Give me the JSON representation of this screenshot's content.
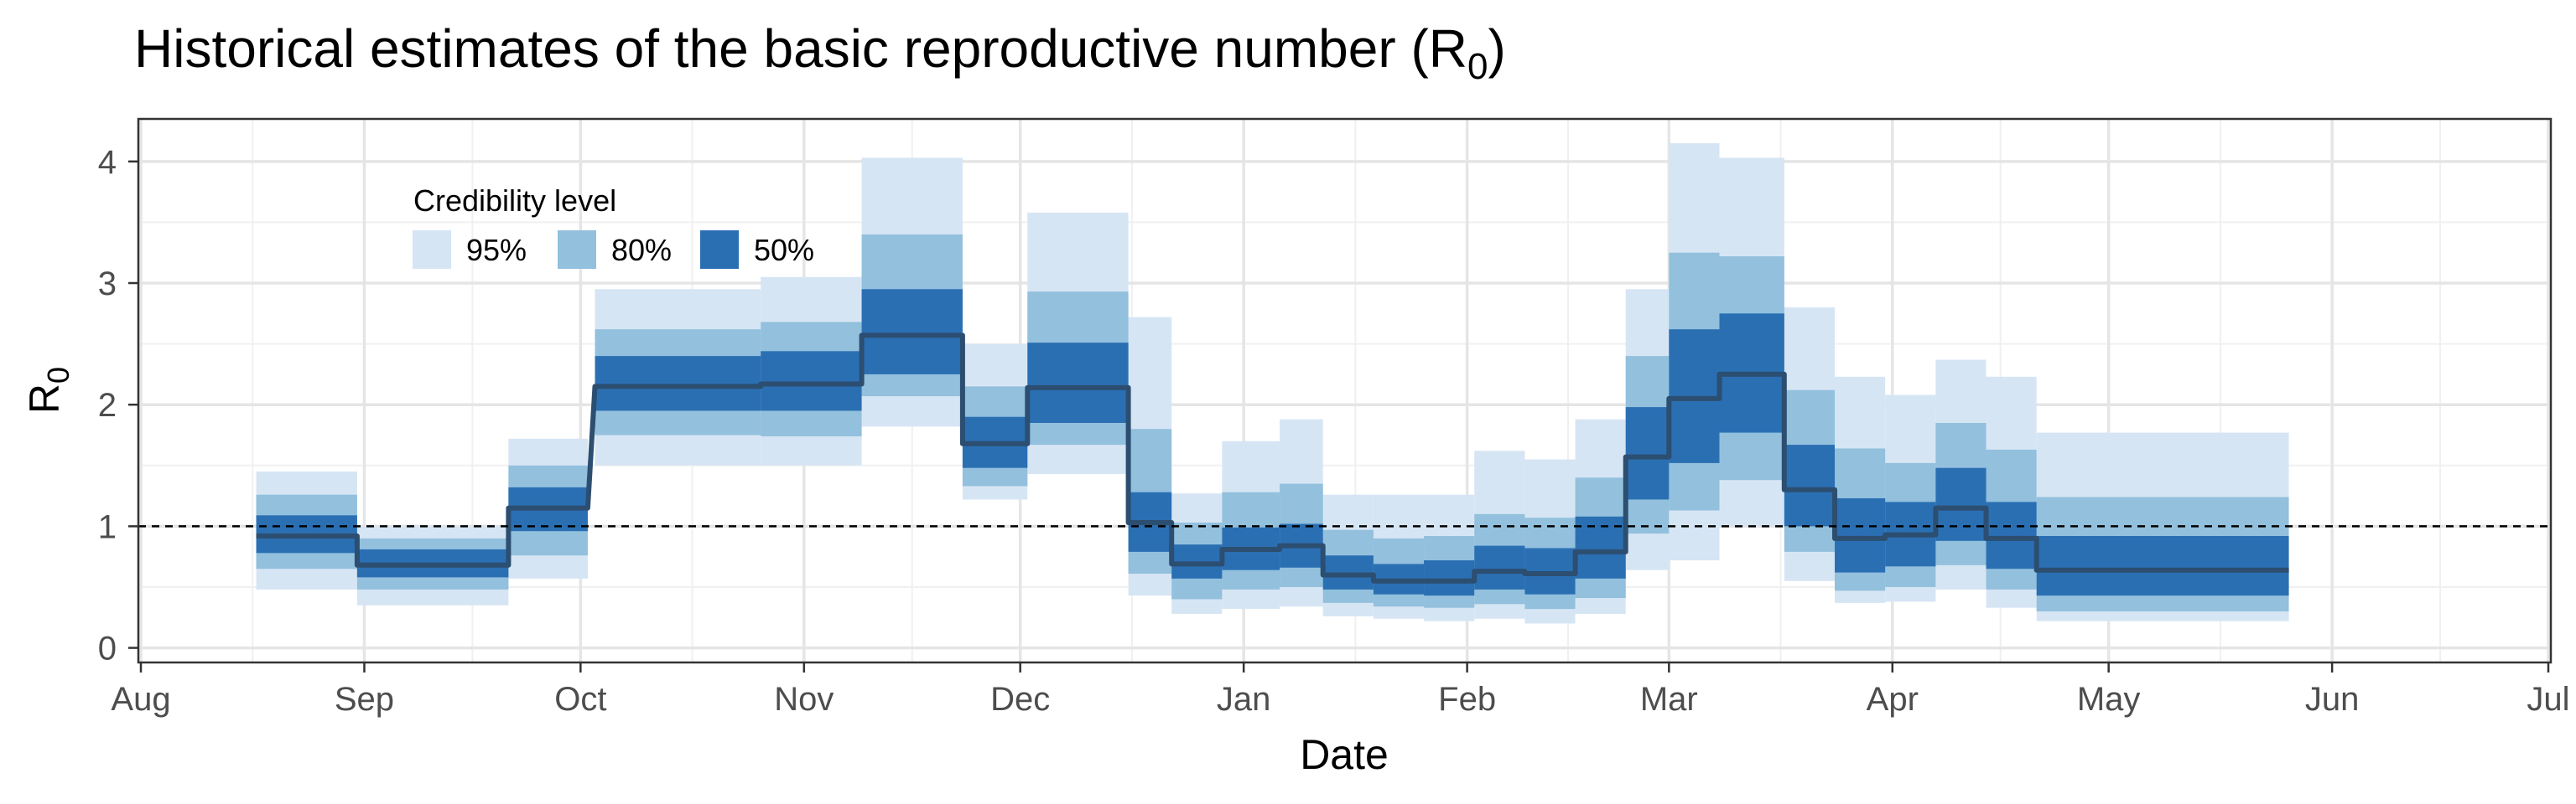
{
  "chart_data": {
    "type": "area",
    "title": "Historical estimates of the basic reproductive number (R",
    "title_sub": "0",
    "title_end": ")",
    "xlabel": "Date",
    "ylabel": "R",
    "ylabel_sub": "0",
    "x_ticks": [
      {
        "label": "Aug",
        "date": "2020-08-01"
      },
      {
        "label": "Sep",
        "date": "2020-09-01"
      },
      {
        "label": "Oct",
        "date": "2020-10-01"
      },
      {
        "label": "Nov",
        "date": "2020-11-01"
      },
      {
        "label": "Dec",
        "date": "2020-12-01"
      },
      {
        "label": "Jan",
        "date": "2021-01-01"
      },
      {
        "label": "Feb",
        "date": "2021-02-01"
      },
      {
        "label": "Mar",
        "date": "2021-03-01"
      },
      {
        "label": "Apr",
        "date": "2021-04-01"
      },
      {
        "label": "May",
        "date": "2021-05-01"
      },
      {
        "label": "Jun",
        "date": "2021-06-01"
      },
      {
        "label": "Jul",
        "date": "2021-07-01"
      }
    ],
    "xlim": [
      "2020-08-01",
      "2021-07-01"
    ],
    "y_ticks": [
      0,
      1,
      2,
      3,
      4
    ],
    "ylim": [
      -0.12,
      4.35
    ],
    "grid": true,
    "reference_line": 1,
    "legend": {
      "title": "Credibility level",
      "position": "top-left",
      "items": [
        {
          "label": "95%",
          "color": "#d6e5f4"
        },
        {
          "label": "80%",
          "color": "#92c0dd"
        },
        {
          "label": "50%",
          "color": "#2b6fb3"
        }
      ]
    },
    "colors": {
      "median": "#2c4e70",
      "reference": "#000000"
    },
    "segments": [
      {
        "start": "2020-08-17",
        "end": "2020-08-30",
        "median": 0.92,
        "lo95": 0.48,
        "hi95": 1.45,
        "lo80": 0.65,
        "hi80": 1.26,
        "lo50": 0.78,
        "hi50": 1.09
      },
      {
        "start": "2020-08-31",
        "end": "2020-09-20",
        "median": 0.68,
        "lo95": 0.35,
        "hi95": 1.0,
        "lo80": 0.48,
        "hi80": 0.9,
        "lo50": 0.58,
        "hi50": 0.81
      },
      {
        "start": "2020-09-21",
        "end": "2020-10-01",
        "median": 1.15,
        "lo95": 0.57,
        "hi95": 1.72,
        "lo80": 0.76,
        "hi80": 1.5,
        "lo50": 0.96,
        "hi50": 1.32
      },
      {
        "start": "2020-10-03",
        "end": "2020-10-25",
        "median": 2.15,
        "lo95": 1.5,
        "hi95": 2.95,
        "lo80": 1.75,
        "hi80": 2.62,
        "lo50": 1.95,
        "hi50": 2.4
      },
      {
        "start": "2020-10-26",
        "end": "2020-11-08",
        "median": 2.17,
        "lo95": 1.5,
        "hi95": 3.05,
        "lo80": 1.74,
        "hi80": 2.68,
        "lo50": 1.95,
        "hi50": 2.44
      },
      {
        "start": "2020-11-09",
        "end": "2020-11-22",
        "median": 2.57,
        "lo95": 1.82,
        "hi95": 4.03,
        "lo80": 2.07,
        "hi80": 3.4,
        "lo50": 2.25,
        "hi50": 2.95
      },
      {
        "start": "2020-11-23",
        "end": "2020-12-01",
        "median": 1.68,
        "lo95": 1.22,
        "hi95": 2.5,
        "lo80": 1.33,
        "hi80": 2.15,
        "lo50": 1.48,
        "hi50": 1.9
      },
      {
        "start": "2020-12-02",
        "end": "2020-12-15",
        "median": 2.14,
        "lo95": 1.43,
        "hi95": 3.58,
        "lo80": 1.67,
        "hi80": 2.93,
        "lo50": 1.85,
        "hi50": 2.51
      },
      {
        "start": "2020-12-16",
        "end": "2020-12-21",
        "median": 1.03,
        "lo95": 0.43,
        "hi95": 2.72,
        "lo80": 0.61,
        "hi80": 1.8,
        "lo50": 0.79,
        "hi50": 1.28
      },
      {
        "start": "2020-12-22",
        "end": "2020-12-28",
        "median": 0.69,
        "lo95": 0.28,
        "hi95": 1.27,
        "lo80": 0.4,
        "hi80": 1.03,
        "lo50": 0.57,
        "hi50": 0.85
      },
      {
        "start": "2020-12-29",
        "end": "2021-01-05",
        "median": 0.81,
        "lo95": 0.32,
        "hi95": 1.7,
        "lo80": 0.48,
        "hi80": 1.28,
        "lo50": 0.64,
        "hi50": 0.99
      },
      {
        "start": "2021-01-06",
        "end": "2021-01-11",
        "median": 0.84,
        "lo95": 0.34,
        "hi95": 1.88,
        "lo80": 0.5,
        "hi80": 1.35,
        "lo50": 0.66,
        "hi50": 1.02
      },
      {
        "start": "2021-01-12",
        "end": "2021-01-18",
        "median": 0.6,
        "lo95": 0.26,
        "hi95": 1.26,
        "lo80": 0.37,
        "hi80": 0.97,
        "lo50": 0.48,
        "hi50": 0.76
      },
      {
        "start": "2021-01-19",
        "end": "2021-01-25",
        "median": 0.55,
        "lo95": 0.24,
        "hi95": 1.26,
        "lo80": 0.34,
        "hi80": 0.9,
        "lo50": 0.44,
        "hi50": 0.69
      },
      {
        "start": "2021-01-26",
        "end": "2021-02-01",
        "median": 0.55,
        "lo95": 0.22,
        "hi95": 1.26,
        "lo80": 0.33,
        "hi80": 0.92,
        "lo50": 0.43,
        "hi50": 0.72
      },
      {
        "start": "2021-02-02",
        "end": "2021-02-08",
        "median": 0.63,
        "lo95": 0.24,
        "hi95": 1.62,
        "lo80": 0.36,
        "hi80": 1.1,
        "lo50": 0.48,
        "hi50": 0.84
      },
      {
        "start": "2021-02-09",
        "end": "2021-02-15",
        "median": 0.61,
        "lo95": 0.2,
        "hi95": 1.55,
        "lo80": 0.32,
        "hi80": 1.07,
        "lo50": 0.44,
        "hi50": 0.82
      },
      {
        "start": "2021-02-16",
        "end": "2021-02-22",
        "median": 0.79,
        "lo95": 0.28,
        "hi95": 1.88,
        "lo80": 0.41,
        "hi80": 1.4,
        "lo50": 0.57,
        "hi50": 1.08
      },
      {
        "start": "2021-02-23",
        "end": "2021-02-28",
        "median": 1.57,
        "lo95": 0.64,
        "hi95": 2.95,
        "lo80": 0.94,
        "hi80": 2.4,
        "lo50": 1.22,
        "hi50": 1.98
      },
      {
        "start": "2021-03-01",
        "end": "2021-03-07",
        "median": 2.05,
        "lo95": 0.72,
        "hi95": 4.15,
        "lo80": 1.13,
        "hi80": 3.25,
        "lo50": 1.52,
        "hi50": 2.62
      },
      {
        "start": "2021-03-08",
        "end": "2021-03-16",
        "median": 2.25,
        "lo95": 1.0,
        "hi95": 4.03,
        "lo80": 1.38,
        "hi80": 3.22,
        "lo50": 1.77,
        "hi50": 2.75
      },
      {
        "start": "2021-03-17",
        "end": "2021-03-23",
        "median": 1.3,
        "lo95": 0.55,
        "hi95": 2.8,
        "lo80": 0.79,
        "hi80": 2.12,
        "lo50": 1.0,
        "hi50": 1.67
      },
      {
        "start": "2021-03-24",
        "end": "2021-03-30",
        "median": 0.9,
        "lo95": 0.37,
        "hi95": 2.23,
        "lo80": 0.47,
        "hi80": 1.64,
        "lo50": 0.62,
        "hi50": 1.23
      },
      {
        "start": "2021-03-31",
        "end": "2021-04-06",
        "median": 0.93,
        "lo95": 0.38,
        "hi95": 2.08,
        "lo80": 0.5,
        "hi80": 1.52,
        "lo50": 0.67,
        "hi50": 1.2
      },
      {
        "start": "2021-04-07",
        "end": "2021-04-13",
        "median": 1.15,
        "lo95": 0.48,
        "hi95": 2.37,
        "lo80": 0.68,
        "hi80": 1.85,
        "lo50": 0.88,
        "hi50": 1.48
      },
      {
        "start": "2021-04-14",
        "end": "2021-04-20",
        "median": 0.9,
        "lo95": 0.33,
        "hi95": 2.23,
        "lo80": 0.48,
        "hi80": 1.63,
        "lo50": 0.65,
        "hi50": 1.2
      },
      {
        "start": "2021-04-21",
        "end": "2021-05-25",
        "median": 0.64,
        "lo95": 0.22,
        "hi95": 1.77,
        "lo80": 0.3,
        "hi80": 1.24,
        "lo50": 0.43,
        "hi50": 0.92
      }
    ]
  }
}
